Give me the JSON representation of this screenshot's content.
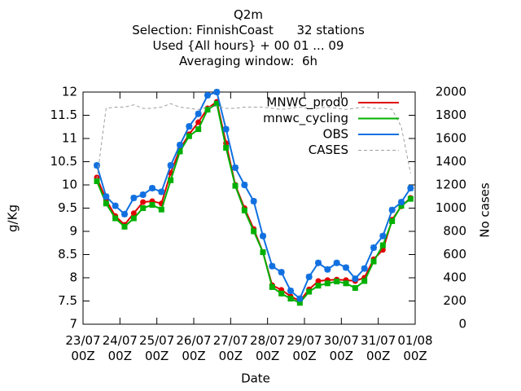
{
  "chart_data": {
    "type": "line",
    "title": "Q2m",
    "subtitle": [
      "Selection: FinnishCoast      32 stations",
      "Used {All hours} + 00 01 ... 09",
      "Averaging window:  6h"
    ],
    "xlabel": "Date",
    "ylabel": "g/Kg",
    "y2label": "No cases",
    "x": [
      9,
      15,
      21,
      27,
      33,
      39,
      45,
      51,
      57,
      63,
      69,
      75,
      81,
      87,
      93,
      99,
      105,
      111,
      117,
      123,
      129,
      135,
      141,
      147,
      153,
      159,
      165,
      171,
      177,
      183,
      189,
      195,
      201,
      207,
      213
    ],
    "xlim": [
      0,
      216
    ],
    "xticks": [
      {
        "value": 0,
        "label": "23/07\n00Z"
      },
      {
        "value": 24,
        "label": "24/07\n00Z"
      },
      {
        "value": 48,
        "label": "25/07\n00Z"
      },
      {
        "value": 72,
        "label": "26/07\n00Z"
      },
      {
        "value": 96,
        "label": "27/07\n00Z"
      },
      {
        "value": 120,
        "label": "28/07\n00Z"
      },
      {
        "value": 144,
        "label": "29/07\n00Z"
      },
      {
        "value": 168,
        "label": "30/07\n00Z"
      },
      {
        "value": 192,
        "label": "31/07\n00Z"
      },
      {
        "value": 216,
        "label": "01/08\n00Z"
      }
    ],
    "ylim": [
      7,
      12
    ],
    "yticks": [
      7,
      7.5,
      8,
      8.5,
      9,
      9.5,
      10,
      10.5,
      11,
      11.5,
      12
    ],
    "y2lim": [
      0,
      2000
    ],
    "y2ticks": [
      0,
      200,
      400,
      600,
      800,
      1000,
      1200,
      1400,
      1600,
      1800,
      2000
    ],
    "legend": "upper right",
    "series": [
      {
        "name": "MNWC_prod0",
        "color": "#e00000",
        "marker": "circle",
        "values": [
          10.16,
          9.68,
          9.33,
          9.14,
          9.39,
          9.63,
          9.65,
          9.6,
          10.26,
          10.77,
          11.09,
          11.35,
          11.65,
          11.79,
          10.9,
          10.0,
          9.5,
          9.05,
          8.55,
          7.84,
          7.74,
          7.6,
          7.5,
          7.75,
          7.93,
          7.95,
          7.96,
          7.95,
          7.93,
          8.0,
          8.4,
          8.6,
          9.25,
          9.54,
          9.72
        ]
      },
      {
        "name": "mnwc_cycling",
        "color": "#00b000",
        "marker": "square",
        "values": [
          10.08,
          9.6,
          9.28,
          9.1,
          9.28,
          9.5,
          9.57,
          9.47,
          10.1,
          10.72,
          11.05,
          11.2,
          11.62,
          11.75,
          10.8,
          9.98,
          9.45,
          9.0,
          8.55,
          7.8,
          7.66,
          7.55,
          7.46,
          7.7,
          7.83,
          7.88,
          7.92,
          7.88,
          7.78,
          7.93,
          8.35,
          8.7,
          9.22,
          9.55,
          9.7
        ]
      },
      {
        "name": "OBS",
        "color": "#1070e0",
        "marker": "star",
        "values": [
          10.42,
          9.75,
          9.55,
          9.37,
          9.72,
          9.79,
          9.93,
          9.85,
          10.42,
          10.86,
          11.26,
          11.53,
          11.93,
          12.0,
          11.2,
          10.37,
          10.0,
          9.65,
          8.9,
          8.25,
          8.12,
          7.72,
          7.55,
          8.02,
          8.32,
          8.18,
          8.32,
          8.22,
          7.98,
          8.2,
          8.65,
          8.9,
          9.46,
          9.63,
          9.93
        ]
      },
      {
        "name": "CASES",
        "color": "#a0a0a0",
        "axis": "y2",
        "dashed": true,
        "values": [
          1250,
          1860,
          1870,
          1870,
          1890,
          1860,
          1860,
          1870,
          1900,
          1870,
          1860,
          1850,
          1870,
          1880,
          1860,
          1860,
          1870,
          1870,
          1870,
          1860,
          1850,
          1860,
          1870,
          1860,
          1860,
          1870,
          1860,
          1850,
          1860,
          1870,
          1860,
          1860,
          1850,
          1700,
          1300
        ]
      }
    ]
  }
}
